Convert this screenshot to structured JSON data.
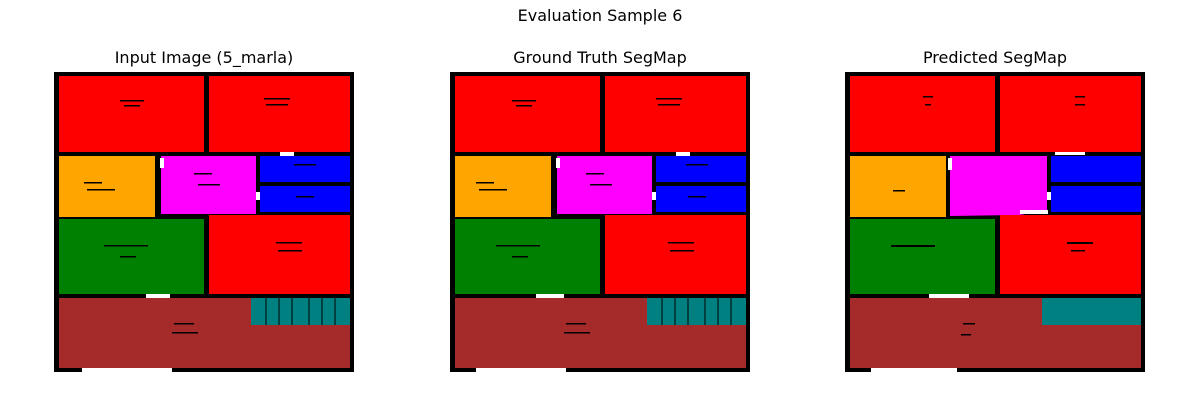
{
  "figure": {
    "title": "Evaluation Sample 6"
  },
  "panels": [
    {
      "title": "Input Image (5_marla)"
    },
    {
      "title": "Ground Truth SegMap"
    },
    {
      "title": "Predicted SegMap"
    }
  ],
  "colors": {
    "wall": "#000000",
    "bedroom": "#ff0000",
    "kitchen": "#ffa500",
    "magenta_room": "#ff00ff",
    "bath": "#0000ff",
    "living": "#008000",
    "garage": "#a52a2a",
    "stairs": "#008080",
    "background": "#ffffff"
  }
}
